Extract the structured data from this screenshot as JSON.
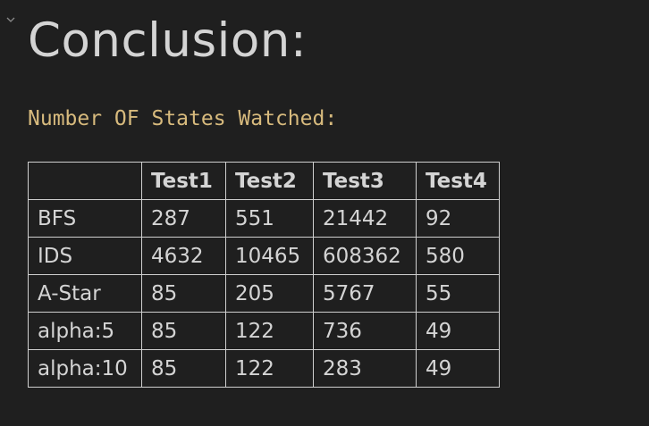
{
  "collapse_icon": "chevron-down-icon",
  "heading": "Conclusion:",
  "subheading": "Number OF States Watched:",
  "colors": {
    "background": "#1f1f1f",
    "heading": "#d4d4d4",
    "subheading": "#d7ba7d",
    "table_text": "#d4d4d4",
    "border": "#cfcfcf"
  },
  "table": {
    "headers": [
      "",
      "Test1",
      "Test2",
      "Test3",
      "Test4"
    ],
    "rows": [
      {
        "name": "BFS",
        "values": [
          "287",
          "551",
          "21442",
          "92"
        ]
      },
      {
        "name": "IDS",
        "values": [
          "4632",
          "10465",
          "608362",
          "580"
        ]
      },
      {
        "name": "A-Star",
        "values": [
          "85",
          "205",
          "5767",
          "55"
        ]
      },
      {
        "name": "alpha:5",
        "values": [
          "85",
          "122",
          "736",
          "49"
        ]
      },
      {
        "name": "alpha:10",
        "values": [
          "85",
          "122",
          "283",
          "49"
        ]
      }
    ]
  }
}
